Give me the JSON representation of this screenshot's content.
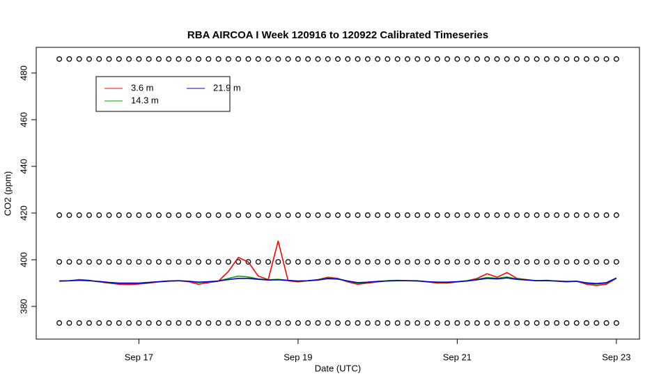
{
  "chart_data": {
    "type": "line",
    "title": "RBA AIRCOA I  Week 120916 to 120922  Calibrated Timeseries",
    "x_label": "Date (UTC)",
    "y_label": "CO2 (ppm)",
    "xlim": [
      15.71,
      23.29
    ],
    "ylim": [
      366,
      491
    ],
    "xticks": [
      {
        "value": 17,
        "label": "Sep 17"
      },
      {
        "value": 19,
        "label": "Sep 19"
      },
      {
        "value": 21,
        "label": "Sep 21"
      },
      {
        "value": 23,
        "label": "Sep 23"
      }
    ],
    "yticks": [
      380,
      400,
      420,
      440,
      460,
      480
    ],
    "x": [
      16,
      16.125,
      16.25,
      16.375,
      16.5,
      16.625,
      16.75,
      16.875,
      17,
      17.125,
      17.25,
      17.375,
      17.5,
      17.625,
      17.75,
      17.875,
      18,
      18.125,
      18.25,
      18.375,
      18.5,
      18.625,
      18.75,
      18.875,
      19,
      19.125,
      19.25,
      19.375,
      19.5,
      19.625,
      19.75,
      19.875,
      20,
      20.125,
      20.25,
      20.375,
      20.5,
      20.625,
      20.75,
      20.875,
      21,
      21.125,
      21.25,
      21.375,
      21.5,
      21.625,
      21.75,
      21.875,
      22,
      22.125,
      22.25,
      22.375,
      22.5,
      22.625,
      22.75,
      22.875,
      23
    ],
    "series": [
      {
        "name": "3.6 m",
        "color": "#ff0000",
        "values": [
          390.8,
          391.0,
          391.5,
          391.2,
          390.5,
          390.0,
          389.5,
          389.4,
          389.6,
          390.0,
          390.5,
          390.8,
          391.0,
          390.6,
          389.5,
          390.2,
          390.8,
          395,
          401,
          399,
          393,
          391.5,
          408,
          391,
          390.5,
          391,
          391.5,
          392.5,
          392,
          390.5,
          389.5,
          390,
          390.5,
          391,
          391.2,
          391,
          391,
          390.5,
          390,
          390,
          390.5,
          391,
          392,
          394,
          392.5,
          394.5,
          392,
          391.5,
          391,
          391.2,
          390.8,
          390.5,
          390.8,
          389.5,
          389,
          389.5,
          392
        ]
      },
      {
        "name": "14.3 m",
        "color": "#00a000",
        "values": [
          390.9,
          391.0,
          391.3,
          391.1,
          390.6,
          390.2,
          389.9,
          389.8,
          389.9,
          390.2,
          390.6,
          390.9,
          391.0,
          390.8,
          390.2,
          390.5,
          390.9,
          392,
          393,
          392.6,
          391.8,
          391.4,
          391.6,
          391.2,
          390.8,
          391,
          391.4,
          392.2,
          391.9,
          390.8,
          390,
          390.3,
          390.7,
          391,
          391.1,
          391,
          391,
          390.6,
          390.3,
          390.3,
          390.6,
          391,
          391.6,
          392.4,
          392,
          392.6,
          391.8,
          391.4,
          391,
          391.1,
          390.9,
          390.6,
          390.8,
          389.9,
          389.6,
          390,
          392
        ]
      },
      {
        "name": "21.9 m",
        "color": "#0000cc",
        "values": [
          390.9,
          391.0,
          391.2,
          391.0,
          390.7,
          390.3,
          390.0,
          390.0,
          390.0,
          390.3,
          390.6,
          390.9,
          391.0,
          390.8,
          390.4,
          390.6,
          390.9,
          391.5,
          392,
          392,
          391.6,
          391.3,
          391.4,
          391.1,
          390.9,
          391,
          391.3,
          391.9,
          391.7,
          390.9,
          390.2,
          390.4,
          390.7,
          390.9,
          391.0,
          391,
          390.9,
          390.6,
          390.4,
          390.4,
          390.6,
          390.9,
          391.4,
          392,
          391.8,
          392.2,
          391.6,
          391.3,
          391,
          391.0,
          390.9,
          390.7,
          390.8,
          390.1,
          389.8,
          390.2,
          392.2
        ]
      }
    ],
    "calibration_levels": [
      486,
      419.1,
      399.1,
      372.9
    ],
    "legend": "top-left"
  }
}
